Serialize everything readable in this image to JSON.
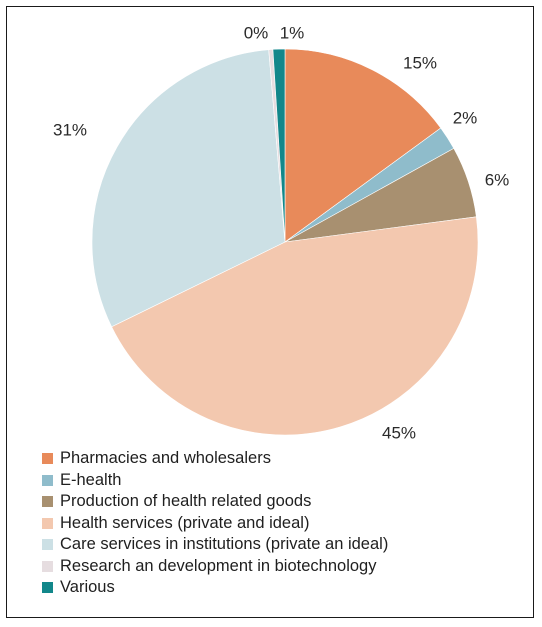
{
  "chart_data": {
    "type": "pie",
    "title": "",
    "start_angle_deg": 0,
    "direction": "clockwise",
    "slices": [
      {
        "label": "Pharmacies and wholesalers",
        "value": 15,
        "value_label": "15%",
        "color": "#E88A5A"
      },
      {
        "label": "E-health",
        "value": 2,
        "value_label": "2%",
        "color": "#8FBCCB"
      },
      {
        "label": "Production of health related goods",
        "value": 6,
        "value_label": "6%",
        "color": "#A89070"
      },
      {
        "label": "Health services (private and ideal)",
        "value": 45,
        "value_label": "45%",
        "color": "#F3C8AF"
      },
      {
        "label": "Care services in institutions (private an ideal)",
        "value": 31,
        "value_label": "31%",
        "color": "#CCE0E5"
      },
      {
        "label": "Research an development in biotechnology",
        "value": 0.35,
        "value_label": "0%",
        "color": "#E6DDE0"
      },
      {
        "label": "Various",
        "value": 1,
        "value_label": "1%",
        "color": "#12878A"
      }
    ],
    "legend_placement": "bottom-left"
  }
}
